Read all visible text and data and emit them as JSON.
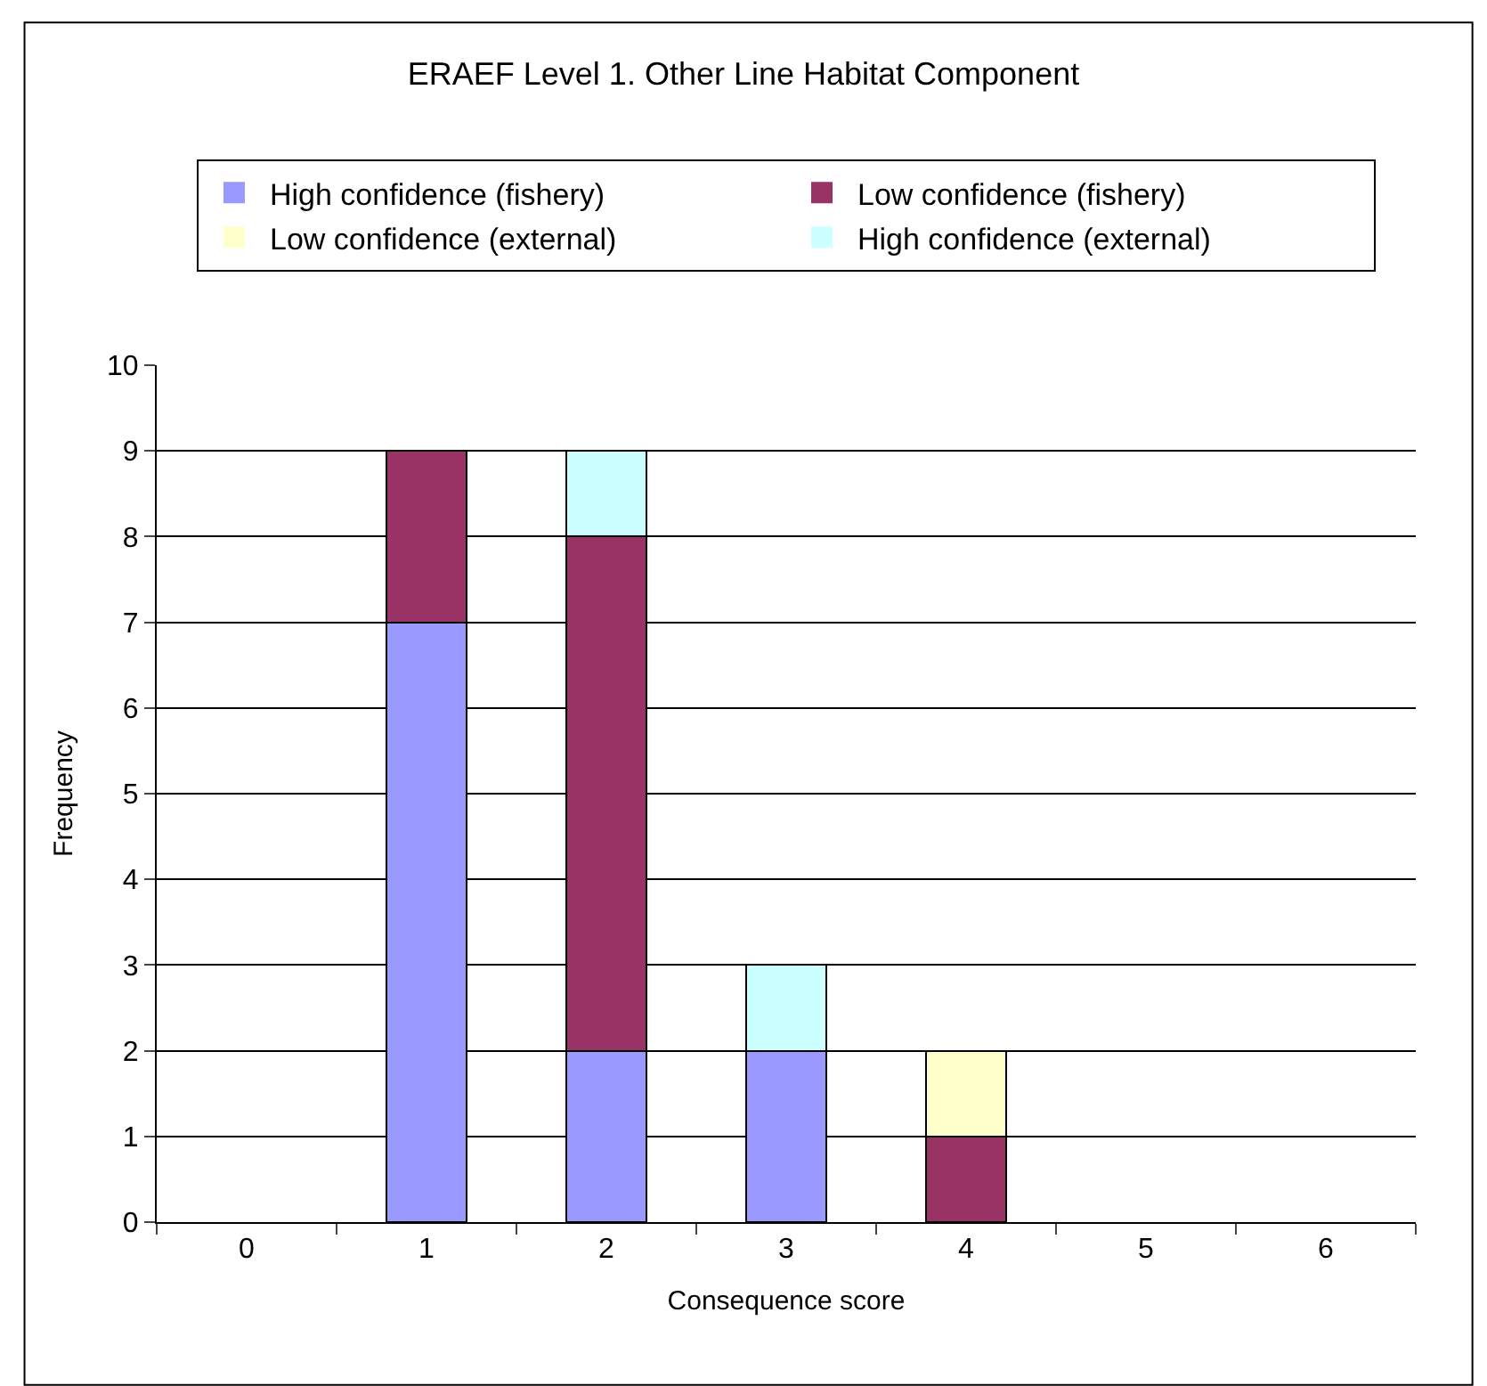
{
  "chart_data": {
    "type": "bar",
    "title": "ERAEF Level 1. Other Line Habitat Component",
    "xlabel": "Consequence score",
    "ylabel": "Frequency",
    "categories": [
      "0",
      "1",
      "2",
      "3",
      "4",
      "5",
      "6"
    ],
    "stacked": true,
    "series": [
      {
        "name": "High confidence (fishery)",
        "color": "#9999ff",
        "values": [
          0,
          7,
          2,
          2,
          0,
          0,
          0
        ]
      },
      {
        "name": "Low confidence (fishery)",
        "color": "#993366",
        "values": [
          0,
          2,
          6,
          0,
          1,
          0,
          0
        ]
      },
      {
        "name": "Low confidence (external)",
        "color": "#ffffcc",
        "values": [
          0,
          0,
          0,
          0,
          1,
          0,
          0
        ]
      },
      {
        "name": "High confidence (external)",
        "color": "#ccffff",
        "values": [
          0,
          0,
          1,
          1,
          0,
          0,
          0
        ]
      }
    ],
    "ylim": [
      0,
      10
    ],
    "yticks": [
      0,
      1,
      2,
      3,
      4,
      5,
      6,
      7,
      8,
      9,
      10
    ],
    "grid": "y",
    "legend": "top"
  }
}
